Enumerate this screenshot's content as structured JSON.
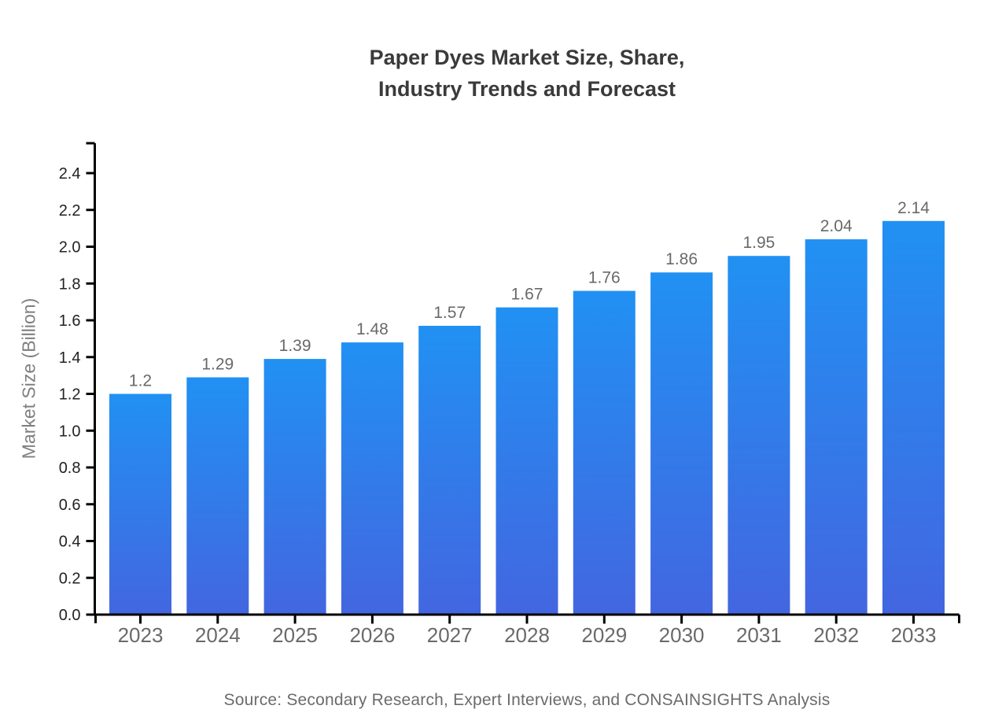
{
  "chart_data": {
    "type": "bar",
    "title_lines": [
      "Paper Dyes Market Size, Share,",
      "Industry Trends and Forecast"
    ],
    "categories": [
      "2023",
      "2024",
      "2025",
      "2026",
      "2027",
      "2028",
      "2029",
      "2030",
      "2031",
      "2032",
      "2033"
    ],
    "values": [
      1.2,
      1.29,
      1.39,
      1.48,
      1.57,
      1.67,
      1.76,
      1.86,
      1.95,
      2.04,
      2.14
    ],
    "value_labels": [
      "1.2",
      "1.29",
      "1.39",
      "1.48",
      "1.57",
      "1.67",
      "1.76",
      "1.86",
      "1.95",
      "2.04",
      "2.14"
    ],
    "xlabel": "",
    "ylabel": "Market Size (Billion)",
    "ylim": [
      0,
      2.4
    ],
    "ytick_labels": [
      "0.0",
      "0.2",
      "0.4",
      "0.6",
      "0.8",
      "1.0",
      "1.2",
      "1.4",
      "1.6",
      "1.8",
      "2.0",
      "2.2",
      "2.4"
    ],
    "grid": false,
    "legend": "none",
    "colors": {
      "bar_gradient_top": "#2191F3",
      "bar_gradient_bottom": "#4366E0",
      "axis": "#000000",
      "title": "#3A3A3A",
      "y_tick_label": "#222222",
      "x_tick_label": "#6A6A6A",
      "value_label": "#696969",
      "y_axis_title": "#7F7F7F",
      "source": "#6B6B6B"
    }
  },
  "source_note": "Source: Secondary Research, Expert Interviews, and CONSAINSIGHTS Analysis"
}
